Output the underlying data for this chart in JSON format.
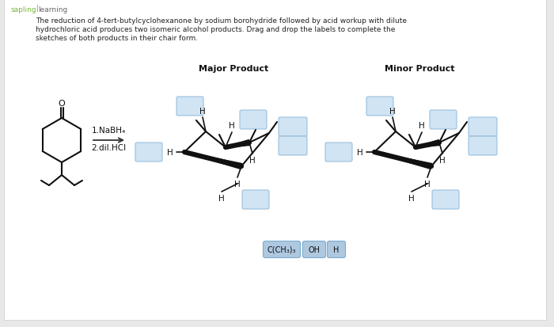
{
  "bg_color": "#e8e8e8",
  "main_bg": "#ffffff",
  "description_line1": "The reduction of 4-tert-butylcyclohexanone by sodium borohydride followed by acid workup with dilute",
  "description_line2": "hydrochloric acid produces two isomeric alcohol products. Drag and drop the labels to complete the",
  "description_line3": "sketches of both products in their chair form.",
  "major_product_label": "Major Product",
  "minor_product_label": "Minor Product",
  "reaction_label1": "1.NaBH₄",
  "reaction_label2": "2.dil.HCl",
  "label_pills": [
    "C(CH₃)₃",
    "OH",
    "H"
  ],
  "pill_color": "#aec8e0",
  "box_color": "#d0e4f4",
  "box_border": "#90b8d8",
  "font_color": "#111111",
  "sapling_green": "#78b73a",
  "sapling_blue": "#4a8fb5",
  "sapling_gray": "#666666",
  "line_color": "#111111",
  "bold_lw": 4.5,
  "thin_lw": 1.4
}
